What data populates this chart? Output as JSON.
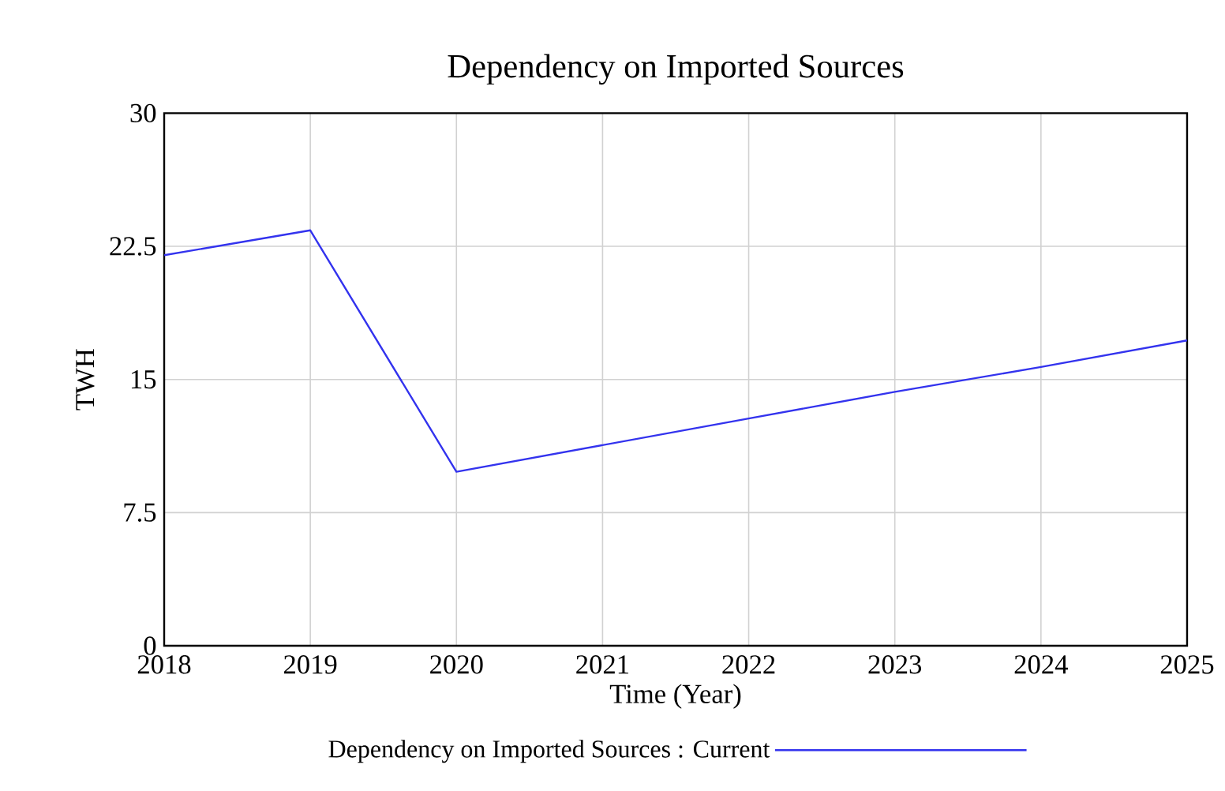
{
  "chart_data": {
    "type": "line",
    "title": "Dependency on Imported Sources",
    "xlabel": "Time (Year)",
    "ylabel": "TWH",
    "x": [
      2018,
      2019,
      2020,
      2021,
      2022,
      2023,
      2024,
      2025
    ],
    "series": [
      {
        "name": "Dependency on Imported Sources : Current",
        "color": "#3333ee",
        "values": [
          22.0,
          23.4,
          9.8,
          11.3,
          12.8,
          14.3,
          15.7,
          17.2
        ]
      }
    ],
    "xlim": [
      2018,
      2025
    ],
    "ylim": [
      0,
      30
    ],
    "xticks": [
      2018,
      2019,
      2020,
      2021,
      2022,
      2023,
      2024,
      2025
    ],
    "yticks": [
      0,
      {
        "value": 7.5,
        "label": "7.5"
      },
      15,
      {
        "value": 22.5,
        "label": "22.5"
      },
      30
    ],
    "grid": true,
    "legend": "bottom",
    "marker": "none",
    "line_style": "solid"
  }
}
